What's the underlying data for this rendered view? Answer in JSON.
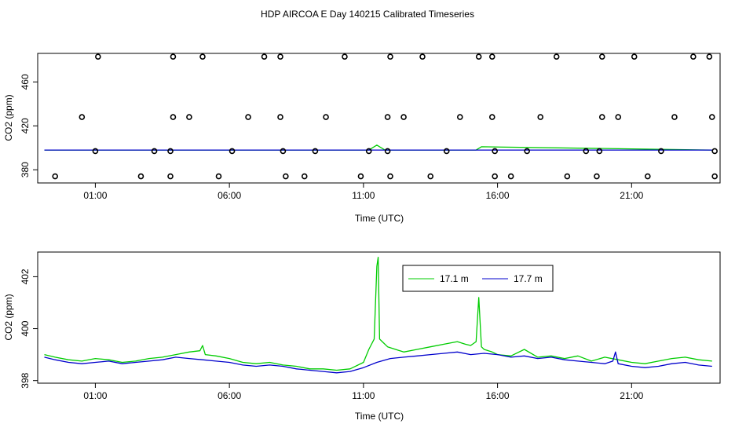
{
  "title": "HDP AIRCOA E  Day 140215  Calibrated Timeseries",
  "colors": {
    "green": "#00cc00",
    "blue": "#0000cc",
    "axis": "#000000"
  },
  "chart_data": [
    {
      "type": "scatter",
      "xlabel": "Time (UTC)",
      "ylabel": "CO2 (ppm)",
      "x_ticks": [
        1,
        6,
        11,
        16,
        21
      ],
      "x_tick_labels": [
        "01:00",
        "06:00",
        "11:00",
        "16:00",
        "21:00"
      ],
      "y_ticks": [
        380,
        420,
        460
      ],
      "y_tick_labels": [
        "380",
        "420",
        "460"
      ],
      "xlim": [
        -1.15,
        24.3
      ],
      "ylim": [
        368,
        486
      ],
      "grid": false,
      "cal_points": [
        {
          "x": -0.5,
          "y": 374
        },
        {
          "x": 2.7,
          "y": 374
        },
        {
          "x": 3.8,
          "y": 374
        },
        {
          "x": 5.6,
          "y": 374
        },
        {
          "x": 8.1,
          "y": 374
        },
        {
          "x": 8.8,
          "y": 374
        },
        {
          "x": 10.9,
          "y": 374
        },
        {
          "x": 12.0,
          "y": 374
        },
        {
          "x": 13.5,
          "y": 374
        },
        {
          "x": 15.9,
          "y": 374
        },
        {
          "x": 16.5,
          "y": 374
        },
        {
          "x": 18.6,
          "y": 374
        },
        {
          "x": 19.7,
          "y": 374
        },
        {
          "x": 21.6,
          "y": 374
        },
        {
          "x": 24.1,
          "y": 374
        },
        {
          "x": 1.0,
          "y": 397
        },
        {
          "x": 3.2,
          "y": 397
        },
        {
          "x": 3.8,
          "y": 397
        },
        {
          "x": 6.1,
          "y": 397
        },
        {
          "x": 8.0,
          "y": 397
        },
        {
          "x": 9.2,
          "y": 397
        },
        {
          "x": 11.2,
          "y": 397
        },
        {
          "x": 11.9,
          "y": 397
        },
        {
          "x": 14.1,
          "y": 397
        },
        {
          "x": 15.9,
          "y": 397
        },
        {
          "x": 17.1,
          "y": 397
        },
        {
          "x": 19.3,
          "y": 397
        },
        {
          "x": 19.8,
          "y": 397
        },
        {
          "x": 22.1,
          "y": 397
        },
        {
          "x": 24.1,
          "y": 397
        },
        {
          "x": 0.5,
          "y": 428
        },
        {
          "x": 3.9,
          "y": 428
        },
        {
          "x": 4.5,
          "y": 428
        },
        {
          "x": 6.7,
          "y": 428
        },
        {
          "x": 7.9,
          "y": 428
        },
        {
          "x": 9.6,
          "y": 428
        },
        {
          "x": 11.9,
          "y": 428
        },
        {
          "x": 12.5,
          "y": 428
        },
        {
          "x": 14.6,
          "y": 428
        },
        {
          "x": 15.8,
          "y": 428
        },
        {
          "x": 17.6,
          "y": 428
        },
        {
          "x": 19.9,
          "y": 428
        },
        {
          "x": 20.5,
          "y": 428
        },
        {
          "x": 22.6,
          "y": 428
        },
        {
          "x": 24.0,
          "y": 428
        },
        {
          "x": 1.1,
          "y": 483
        },
        {
          "x": 3.9,
          "y": 483
        },
        {
          "x": 5.0,
          "y": 483
        },
        {
          "x": 7.3,
          "y": 483
        },
        {
          "x": 7.9,
          "y": 483
        },
        {
          "x": 10.3,
          "y": 483
        },
        {
          "x": 12.0,
          "y": 483
        },
        {
          "x": 13.2,
          "y": 483
        },
        {
          "x": 15.3,
          "y": 483
        },
        {
          "x": 15.8,
          "y": 483
        },
        {
          "x": 18.2,
          "y": 483
        },
        {
          "x": 19.9,
          "y": 483
        },
        {
          "x": 21.1,
          "y": 483
        },
        {
          "x": 23.3,
          "y": 483
        },
        {
          "x": 23.9,
          "y": 483
        }
      ],
      "series": [
        {
          "color": "#00cc00",
          "x": [
            -0.9,
            11.2,
            11.5,
            11.8,
            15.2,
            15.4,
            24.0
          ],
          "y": [
            398,
            398,
            402.5,
            398,
            398,
            401,
            398
          ]
        },
        {
          "color": "#0000cc",
          "x": [
            -0.9,
            24.0
          ],
          "y": [
            398,
            398
          ]
        }
      ]
    },
    {
      "type": "line",
      "xlabel": "Time (UTC)",
      "ylabel": "CO2 (ppm)",
      "x_ticks": [
        1,
        6,
        11,
        16,
        21
      ],
      "x_tick_labels": [
        "01:00",
        "06:00",
        "11:00",
        "16:00",
        "21:00"
      ],
      "y_ticks": [
        398,
        400,
        402
      ],
      "y_tick_labels": [
        "398",
        "400",
        "402"
      ],
      "xlim": [
        -1.15,
        24.3
      ],
      "ylim": [
        397.9,
        402.95
      ],
      "grid": false,
      "legend": {
        "placement": "top-right",
        "entries": [
          "17.1 m",
          "17.7 m"
        ]
      },
      "series": [
        {
          "name": "17.1 m",
          "color": "#00cc00",
          "x": [
            -0.9,
            -0.5,
            0,
            0.5,
            1,
            1.5,
            2,
            2.5,
            3,
            3.5,
            4,
            4.5,
            4.9,
            5.0,
            5.1,
            5.5,
            6,
            6.5,
            7,
            7.5,
            8,
            8.5,
            9,
            9.5,
            10,
            10.5,
            11,
            11.2,
            11.4,
            11.5,
            11.55,
            11.6,
            11.7,
            11.9,
            12.2,
            12.5,
            13,
            13.5,
            14,
            14.5,
            14.8,
            15,
            15.2,
            15.3,
            15.4,
            15.5,
            15.8,
            16,
            16.5,
            17,
            17.5,
            18,
            18.5,
            19,
            19.5,
            20,
            20.5,
            21,
            21.5,
            22,
            22.5,
            23,
            23.5,
            24
          ],
          "y": [
            399.0,
            398.9,
            398.8,
            398.75,
            398.85,
            398.8,
            398.7,
            398.75,
            398.85,
            398.9,
            399.0,
            399.1,
            399.15,
            399.35,
            399.0,
            398.95,
            398.85,
            398.7,
            398.65,
            398.7,
            398.6,
            398.55,
            398.45,
            398.45,
            398.4,
            398.45,
            398.7,
            399.2,
            399.6,
            402.4,
            402.75,
            399.6,
            399.5,
            399.3,
            399.2,
            399.1,
            399.2,
            399.3,
            399.4,
            399.5,
            399.4,
            399.35,
            399.5,
            401.2,
            399.3,
            399.2,
            399.1,
            399.0,
            398.95,
            399.2,
            398.9,
            398.95,
            398.85,
            398.95,
            398.75,
            398.9,
            398.8,
            398.7,
            398.65,
            398.75,
            398.85,
            398.9,
            398.8,
            398.75
          ]
        },
        {
          "name": "17.7 m",
          "color": "#0000cc",
          "x": [
            -0.9,
            -0.5,
            0,
            0.5,
            1,
            1.5,
            2,
            2.5,
            3,
            3.5,
            4,
            4.5,
            5,
            5.5,
            6,
            6.5,
            7,
            7.5,
            8,
            8.5,
            9,
            9.5,
            10,
            10.5,
            11,
            11.5,
            12,
            12.5,
            13,
            13.5,
            14,
            14.5,
            15,
            15.5,
            16,
            16.5,
            17,
            17.5,
            18,
            18.5,
            19,
            19.5,
            20,
            20.3,
            20.4,
            20.5,
            21,
            21.5,
            22,
            22.5,
            23,
            23.5,
            24
          ],
          "y": [
            398.9,
            398.8,
            398.7,
            398.65,
            398.7,
            398.75,
            398.65,
            398.7,
            398.75,
            398.8,
            398.9,
            398.85,
            398.8,
            398.75,
            398.7,
            398.6,
            398.55,
            398.6,
            398.55,
            398.45,
            398.4,
            398.35,
            398.3,
            398.35,
            398.5,
            398.7,
            398.85,
            398.9,
            398.95,
            399.0,
            399.05,
            399.1,
            399.0,
            399.05,
            399.0,
            398.9,
            398.95,
            398.85,
            398.9,
            398.8,
            398.75,
            398.7,
            398.65,
            398.75,
            399.1,
            398.65,
            398.55,
            398.5,
            398.55,
            398.65,
            398.7,
            398.6,
            398.55
          ]
        }
      ]
    }
  ]
}
